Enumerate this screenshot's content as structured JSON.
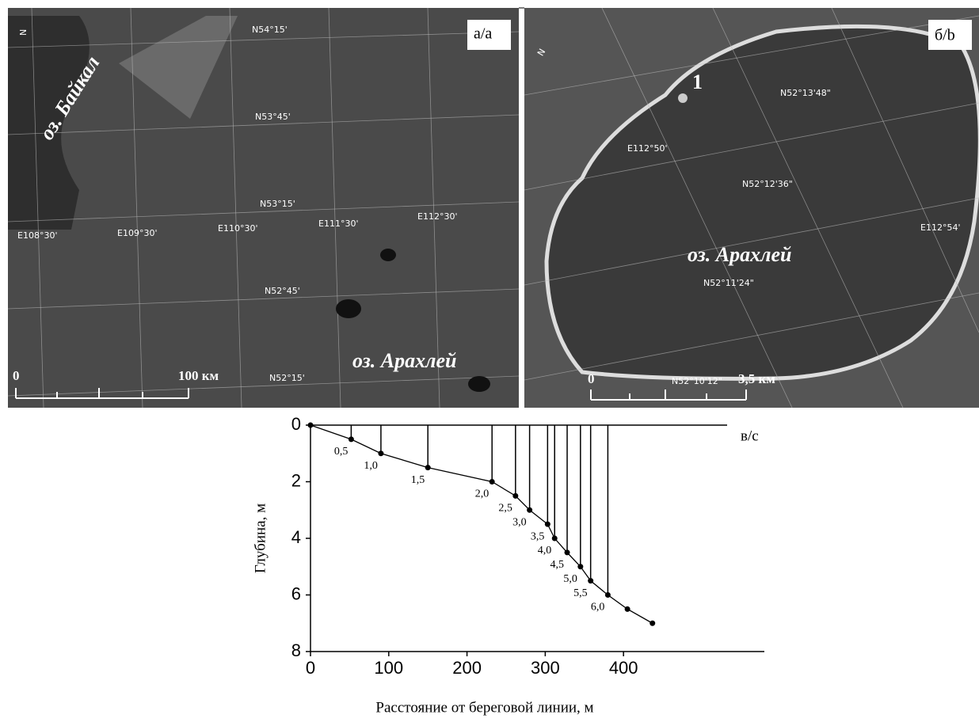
{
  "maps": [
    {
      "tag": "а/а",
      "lake_1": "оз. Байкал",
      "lake_2": "оз. Арахлей",
      "north": "N",
      "latitudes": [
        "N54°15'",
        "N53°45'",
        "N53°15'",
        "N52°45'",
        "N52°15'"
      ],
      "longitudes": [
        "E108°30'",
        "E109°30'",
        "E110°30'",
        "E111°30'",
        "E112°30'"
      ],
      "scale_start": "0",
      "scale_end": "100 км"
    },
    {
      "tag": "б/b",
      "point": "1",
      "north": "N",
      "lake": "оз. Арахлей",
      "latitudes": [
        "N52°13'48\"",
        "N52°12'36\"",
        "N52°11'24\"",
        "N52°10'12\""
      ],
      "longitudes": [
        "E112°50'",
        "E112°54'"
      ],
      "scale_start": "0",
      "scale_end": "3,5 км"
    }
  ],
  "chart_data": {
    "type": "line",
    "x_label": "Расстояние от береговой линии, м",
    "y_label": "Глубина, м",
    "surface_label": "в/с",
    "x": [
      0,
      52,
      90,
      150,
      232,
      262,
      280,
      303,
      312,
      328,
      345,
      358,
      380,
      405,
      437
    ],
    "values": [
      0,
      0.5,
      1.0,
      1.5,
      2.0,
      2.5,
      3.0,
      3.5,
      4.0,
      4.5,
      5.0,
      5.5,
      6.0,
      6.5,
      7.0
    ],
    "value_labels": [
      null,
      "0,5",
      "1,0",
      "1,5",
      "2,0",
      "2,5",
      "3,0",
      "3,5",
      "4,0",
      "4,5",
      "5,0",
      "5,5",
      "6,0",
      null,
      null
    ],
    "color": "#000000",
    "xlim": [
      0,
      580
    ],
    "xticks": [
      0,
      100,
      200,
      300,
      400
    ],
    "ylim": [
      0,
      8
    ],
    "yticks": [
      0,
      2,
      4,
      6,
      8
    ],
    "y_inverted": true
  }
}
